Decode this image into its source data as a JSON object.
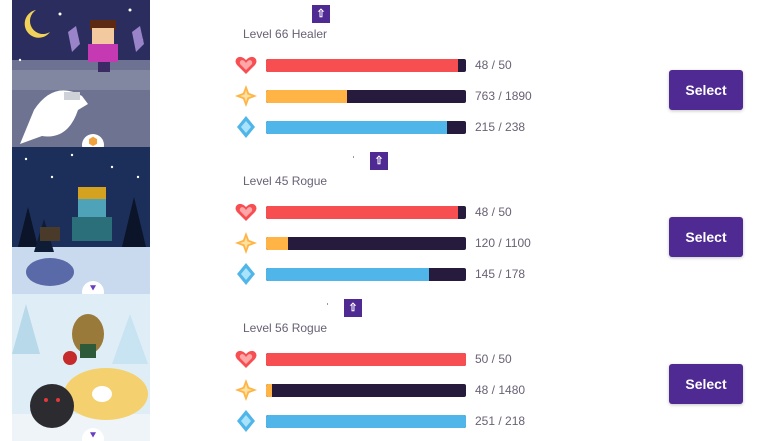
{
  "colors": {
    "accent": "#4f2a93",
    "health": "#f74e52",
    "experience": "#ffb445",
    "mana": "#50b5e9",
    "bar_track": "#271b3d",
    "text_muted": "#686274"
  },
  "members": [
    {
      "level_text": "Level 66 Healer",
      "badge_icon": "shield-icon",
      "health": {
        "current": 48,
        "max": 50,
        "text": "48 / 50"
      },
      "experience": {
        "current": 763,
        "max": 1890,
        "text": "763 / 1890"
      },
      "mana": {
        "current": 215,
        "max": 238,
        "text": "215 / 238"
      },
      "select_label": "Select"
    },
    {
      "level_text": "Level 45 Rogue",
      "badge_icon": "chevron-down-icon",
      "health": {
        "current": 48,
        "max": 50,
        "text": "48 / 50"
      },
      "experience": {
        "current": 120,
        "max": 1100,
        "text": "120 / 1100"
      },
      "mana": {
        "current": 145,
        "max": 178,
        "text": "145 / 178"
      },
      "select_label": "Select"
    },
    {
      "level_text": "Level 56 Rogue",
      "badge_icon": "chevron-down-icon",
      "health": {
        "current": 50,
        "max": 50,
        "text": "50 / 50"
      },
      "experience": {
        "current": 48,
        "max": 1480,
        "text": "48 / 1480"
      },
      "mana": {
        "current": 251,
        "max": 218,
        "text": "251 / 218"
      },
      "select_label": "Select"
    }
  ]
}
